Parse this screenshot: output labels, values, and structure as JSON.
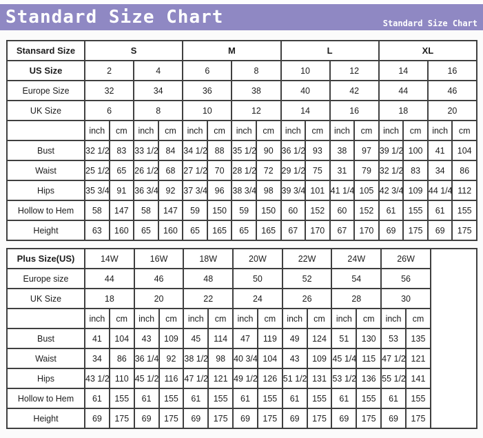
{
  "header": {
    "title": "Standard Size Chart",
    "subtitle": "Standard Size Chart",
    "bg_color": "#8f88c3",
    "text_color": "#ffffff"
  },
  "colors": {
    "header_purple": "#8f88c3",
    "table_border": "#3f3f3f",
    "cell_bg": "#ffffff",
    "page_bg": "#fbfbfb",
    "text": "#1c1c1c"
  },
  "chart_data": [
    {
      "type": "table",
      "data_name": "standard-size-table",
      "num_sizes": 8,
      "trailing_empty_column": false,
      "header_rows": [
        {
          "label": "Stansard Size",
          "bold": true,
          "span": 4,
          "values_bold": true,
          "values": [
            "S",
            "M",
            "L",
            "XL"
          ]
        },
        {
          "label": "US Size",
          "bold": true,
          "span": 2,
          "values_bold": false,
          "values": [
            "2",
            "4",
            "6",
            "8",
            "10",
            "12",
            "14",
            "16"
          ]
        },
        {
          "label": "Europe Size",
          "bold": false,
          "span": 2,
          "values_bold": false,
          "values": [
            "32",
            "34",
            "36",
            "38",
            "40",
            "42",
            "44",
            "46"
          ]
        },
        {
          "label": "UK Size",
          "bold": false,
          "span": 2,
          "values_bold": false,
          "values": [
            "6",
            "8",
            "10",
            "12",
            "14",
            "16",
            "18",
            "20"
          ]
        }
      ],
      "units": [
        "inch",
        "cm"
      ],
      "measurement_rows": [
        {
          "label": "Bust",
          "pairs": [
            [
              "32 1/2",
              "83"
            ],
            [
              "33 1/2",
              "84"
            ],
            [
              "34 1/2",
              "88"
            ],
            [
              "35 1/2",
              "90"
            ],
            [
              "36 1/2",
              "93"
            ],
            [
              "38",
              "97"
            ],
            [
              "39 1/2",
              "100"
            ],
            [
              "41",
              "104"
            ]
          ]
        },
        {
          "label": "Waist",
          "pairs": [
            [
              "25 1/2",
              "65"
            ],
            [
              "26 1/2",
              "68"
            ],
            [
              "27 1/2",
              "70"
            ],
            [
              "28 1/2",
              "72"
            ],
            [
              "29 1/2",
              "75"
            ],
            [
              "31",
              "79"
            ],
            [
              "32 1/2",
              "83"
            ],
            [
              "34",
              "86"
            ]
          ]
        },
        {
          "label": "Hips",
          "pairs": [
            [
              "35 3/4",
              "91"
            ],
            [
              "36 3/4",
              "92"
            ],
            [
              "37 3/4",
              "96"
            ],
            [
              "38 3/4",
              "98"
            ],
            [
              "39 3/4",
              "101"
            ],
            [
              "41 1/4",
              "105"
            ],
            [
              "42 3/4",
              "109"
            ],
            [
              "44 1/4",
              "112"
            ]
          ]
        },
        {
          "label": "Hollow to Hem",
          "pairs": [
            [
              "58",
              "147"
            ],
            [
              "58",
              "147"
            ],
            [
              "59",
              "150"
            ],
            [
              "59",
              "150"
            ],
            [
              "60",
              "152"
            ],
            [
              "60",
              "152"
            ],
            [
              "61",
              "155"
            ],
            [
              "61",
              "155"
            ]
          ]
        },
        {
          "label": "Height",
          "pairs": [
            [
              "63",
              "160"
            ],
            [
              "65",
              "160"
            ],
            [
              "65",
              "165"
            ],
            [
              "65",
              "165"
            ],
            [
              "67",
              "170"
            ],
            [
              "67",
              "170"
            ],
            [
              "69",
              "175"
            ],
            [
              "69",
              "175"
            ]
          ]
        }
      ]
    },
    {
      "type": "table",
      "data_name": "plus-size-table",
      "num_sizes": 7,
      "trailing_empty_column": true,
      "header_rows": [
        {
          "label": "Plus Size(US)",
          "bold": true,
          "span": 2,
          "values_bold": false,
          "values": [
            "14W",
            "16W",
            "18W",
            "20W",
            "22W",
            "24W",
            "26W"
          ]
        },
        {
          "label": "Europe size",
          "bold": false,
          "span": 2,
          "values_bold": false,
          "values": [
            "44",
            "46",
            "48",
            "50",
            "52",
            "54",
            "56"
          ]
        },
        {
          "label": "UK Size",
          "bold": false,
          "span": 2,
          "values_bold": false,
          "values": [
            "18",
            "20",
            "22",
            "24",
            "26",
            "28",
            "30"
          ]
        }
      ],
      "units": [
        "inch",
        "cm"
      ],
      "measurement_rows": [
        {
          "label": "Bust",
          "pairs": [
            [
              "41",
              "104"
            ],
            [
              "43",
              "109"
            ],
            [
              "45",
              "114"
            ],
            [
              "47",
              "119"
            ],
            [
              "49",
              "124"
            ],
            [
              "51",
              "130"
            ],
            [
              "53",
              "135"
            ]
          ]
        },
        {
          "label": "Waist",
          "pairs": [
            [
              "34",
              "86"
            ],
            [
              "36 1/4",
              "92"
            ],
            [
              "38 1/2",
              "98"
            ],
            [
              "40 3/4",
              "104"
            ],
            [
              "43",
              "109"
            ],
            [
              "45 1/4",
              "115"
            ],
            [
              "47 1/2",
              "121"
            ]
          ]
        },
        {
          "label": "Hips",
          "pairs": [
            [
              "43 1/2",
              "110"
            ],
            [
              "45 1/2",
              "116"
            ],
            [
              "47 1/2",
              "121"
            ],
            [
              "49 1/2",
              "126"
            ],
            [
              "51 1/2",
              "131"
            ],
            [
              "53 1/2",
              "136"
            ],
            [
              "55 1/2",
              "141"
            ]
          ]
        },
        {
          "label": "Hollow to Hem",
          "pairs": [
            [
              "61",
              "155"
            ],
            [
              "61",
              "155"
            ],
            [
              "61",
              "155"
            ],
            [
              "61",
              "155"
            ],
            [
              "61",
              "155"
            ],
            [
              "61",
              "155"
            ],
            [
              "61",
              "155"
            ]
          ]
        },
        {
          "label": "Height",
          "pairs": [
            [
              "69",
              "175"
            ],
            [
              "69",
              "175"
            ],
            [
              "69",
              "175"
            ],
            [
              "69",
              "175"
            ],
            [
              "69",
              "175"
            ],
            [
              "69",
              "175"
            ],
            [
              "69",
              "175"
            ]
          ]
        }
      ]
    }
  ]
}
